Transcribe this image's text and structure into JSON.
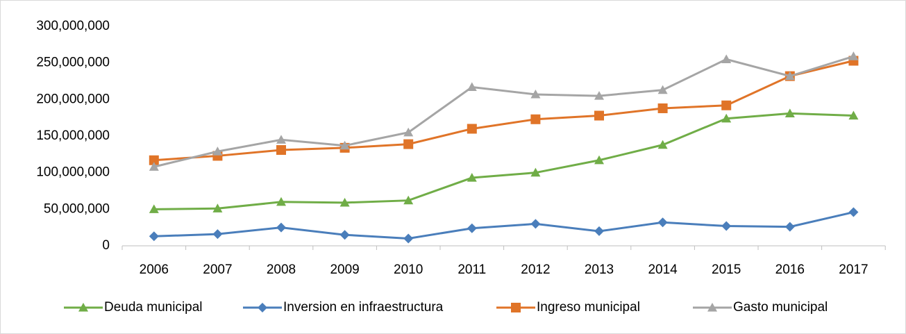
{
  "chart_data": {
    "type": "line",
    "categories": [
      "2006",
      "2007",
      "2008",
      "2009",
      "2010",
      "2011",
      "2012",
      "2013",
      "2014",
      "2015",
      "2016",
      "2017"
    ],
    "ylim": [
      0,
      300000000
    ],
    "yticks": [
      0,
      {
        "value": 50000000,
        "label": "50,000,000"
      },
      {
        "value": 100000000,
        "label": "100,000,000"
      },
      {
        "value": 150000000,
        "label": "150,000,000"
      },
      {
        "value": 200000000,
        "label": "200,000,000"
      },
      {
        "value": 250000000,
        "label": "250,000,000"
      },
      {
        "value": 300000000,
        "label": "300,000,000"
      }
    ],
    "grid": false,
    "legend": "bottom",
    "series": [
      {
        "name": "Deuda municipal",
        "color": "#70ad47",
        "marker": "triangle",
        "values": [
          50000000,
          51000000,
          60000000,
          59000000,
          62000000,
          93000000,
          100000000,
          117000000,
          138000000,
          174000000,
          181000000,
          178000000
        ]
      },
      {
        "name": "Inversion en infraestructura",
        "color": "#4a7ebb",
        "marker": "diamond",
        "values": [
          13000000,
          16000000,
          25000000,
          15000000,
          10000000,
          24000000,
          30000000,
          20000000,
          32000000,
          27000000,
          26000000,
          46000000
        ]
      },
      {
        "name": "Ingreso municipal",
        "color": "#e07428",
        "marker": "square",
        "values": [
          117000000,
          123000000,
          131000000,
          134000000,
          139000000,
          160000000,
          173000000,
          178000000,
          188000000,
          192000000,
          232000000,
          253000000
        ]
      },
      {
        "name": "Gasto municipal",
        "color": "#a5a5a5",
        "marker": "triangle",
        "values": [
          108000000,
          129000000,
          145000000,
          137000000,
          155000000,
          217000000,
          207000000,
          205000000,
          213000000,
          255000000,
          232000000,
          259000000
        ]
      }
    ]
  }
}
